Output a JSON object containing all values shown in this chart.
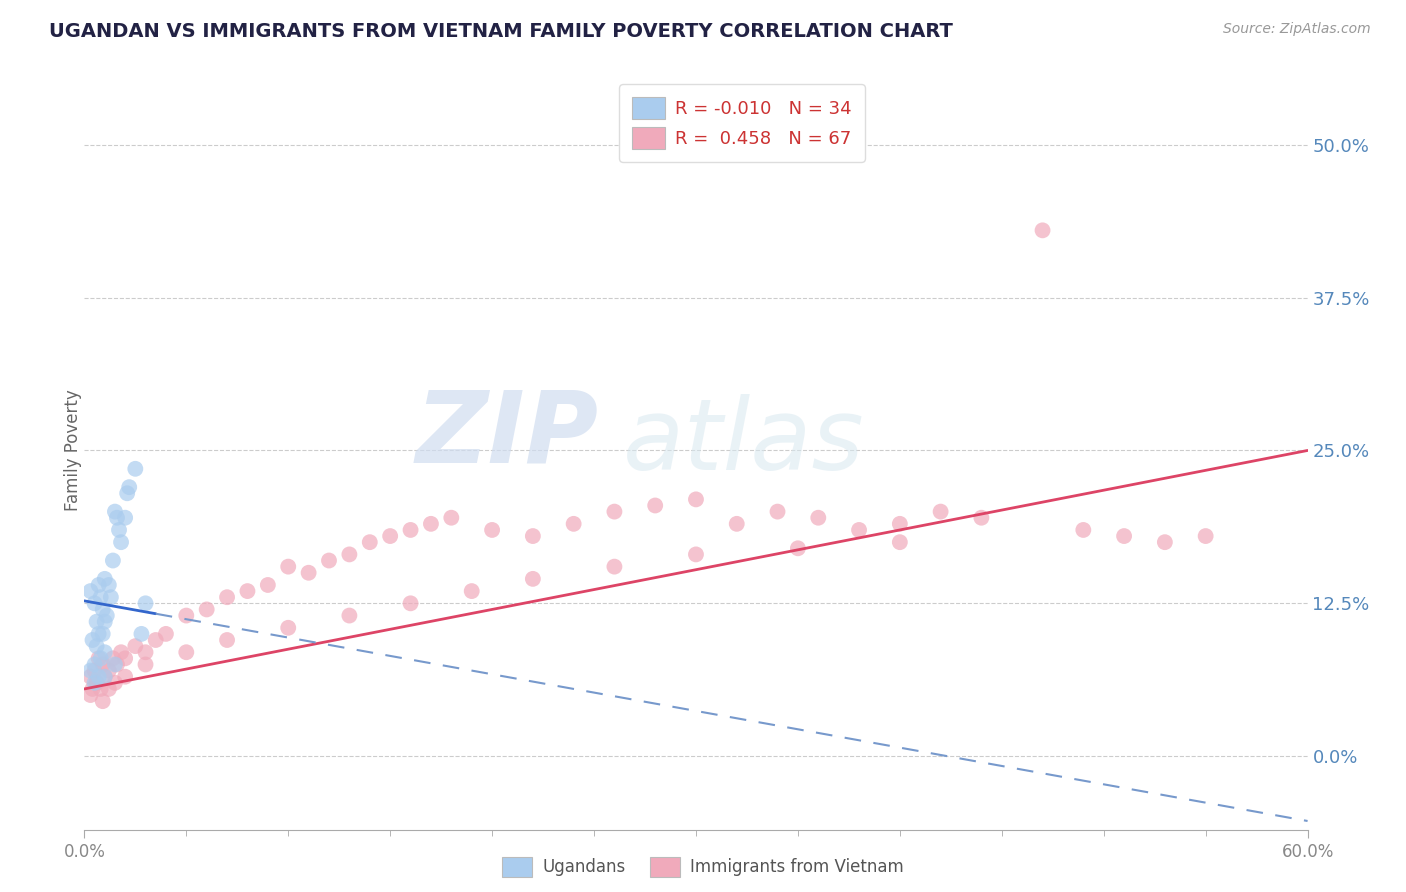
{
  "title": "UGANDAN VS IMMIGRANTS FROM VIETNAM FAMILY POVERTY CORRELATION CHART",
  "source": "Source: ZipAtlas.com",
  "ylabel": "Family Poverty",
  "ytick_labels": [
    "0.0%",
    "12.5%",
    "25.0%",
    "37.5%",
    "50.0%"
  ],
  "ytick_values": [
    0.0,
    0.125,
    0.25,
    0.375,
    0.5
  ],
  "xtick_labels": [
    "0.0%",
    "60.0%"
  ],
  "xtick_values": [
    0.0,
    0.6
  ],
  "xmin": 0.0,
  "xmax": 0.6,
  "ymin": -0.06,
  "ymax": 0.56,
  "color_ugandan": "#aaccee",
  "color_vietnam": "#f0aabb",
  "color_line_ugandan_solid": "#3366cc",
  "color_line_ugandan_dash": "#7799cc",
  "color_line_vietnam": "#dd4466",
  "watermark_zip": "ZIP",
  "watermark_atlas": "atlas",
  "legend_label1": "R = -0.010   N = 34",
  "legend_label2": "R =  0.458   N = 67",
  "legend_r1_color": "#ee4444",
  "legend_r2_color": "#ee4444",
  "bottom_label1": "Ugandans",
  "bottom_label2": "Immigrants from Vietnam",
  "ugandan_x": [
    0.003,
    0.004,
    0.005,
    0.005,
    0.006,
    0.006,
    0.007,
    0.007,
    0.008,
    0.008,
    0.009,
    0.009,
    0.01,
    0.01,
    0.01,
    0.011,
    0.012,
    0.013,
    0.014,
    0.015,
    0.016,
    0.017,
    0.018,
    0.02,
    0.021,
    0.022,
    0.025,
    0.028,
    0.03,
    0.003,
    0.005,
    0.007,
    0.01,
    0.015
  ],
  "ugandan_y": [
    0.135,
    0.095,
    0.125,
    0.075,
    0.11,
    0.09,
    0.14,
    0.1,
    0.13,
    0.08,
    0.12,
    0.1,
    0.145,
    0.11,
    0.085,
    0.115,
    0.14,
    0.13,
    0.16,
    0.2,
    0.195,
    0.185,
    0.175,
    0.195,
    0.215,
    0.22,
    0.235,
    0.1,
    0.125,
    0.07,
    0.06,
    0.065,
    0.065,
    0.075
  ],
  "vietnam_x": [
    0.003,
    0.004,
    0.005,
    0.006,
    0.007,
    0.008,
    0.009,
    0.01,
    0.012,
    0.014,
    0.016,
    0.018,
    0.02,
    0.025,
    0.03,
    0.035,
    0.04,
    0.05,
    0.06,
    0.07,
    0.08,
    0.09,
    0.1,
    0.11,
    0.12,
    0.13,
    0.14,
    0.15,
    0.16,
    0.17,
    0.18,
    0.2,
    0.22,
    0.24,
    0.26,
    0.28,
    0.3,
    0.32,
    0.34,
    0.36,
    0.38,
    0.4,
    0.42,
    0.44,
    0.47,
    0.49,
    0.51,
    0.53,
    0.55,
    0.003,
    0.006,
    0.009,
    0.012,
    0.015,
    0.02,
    0.03,
    0.05,
    0.07,
    0.1,
    0.13,
    0.16,
    0.19,
    0.22,
    0.26,
    0.3,
    0.35,
    0.4
  ],
  "vietnam_y": [
    0.065,
    0.055,
    0.07,
    0.06,
    0.08,
    0.055,
    0.075,
    0.065,
    0.07,
    0.08,
    0.075,
    0.085,
    0.08,
    0.09,
    0.085,
    0.095,
    0.1,
    0.115,
    0.12,
    0.13,
    0.135,
    0.14,
    0.155,
    0.15,
    0.16,
    0.165,
    0.175,
    0.18,
    0.185,
    0.19,
    0.195,
    0.185,
    0.18,
    0.19,
    0.2,
    0.205,
    0.21,
    0.19,
    0.2,
    0.195,
    0.185,
    0.19,
    0.2,
    0.195,
    0.43,
    0.185,
    0.18,
    0.175,
    0.18,
    0.05,
    0.06,
    0.045,
    0.055,
    0.06,
    0.065,
    0.075,
    0.085,
    0.095,
    0.105,
    0.115,
    0.125,
    0.135,
    0.145,
    0.155,
    0.165,
    0.17,
    0.175
  ],
  "ug_line_x_solid_end": 0.035,
  "ug_line_intercept": 0.127,
  "ug_line_slope": -0.3,
  "viet_line_intercept": 0.055,
  "viet_line_slope": 0.325
}
